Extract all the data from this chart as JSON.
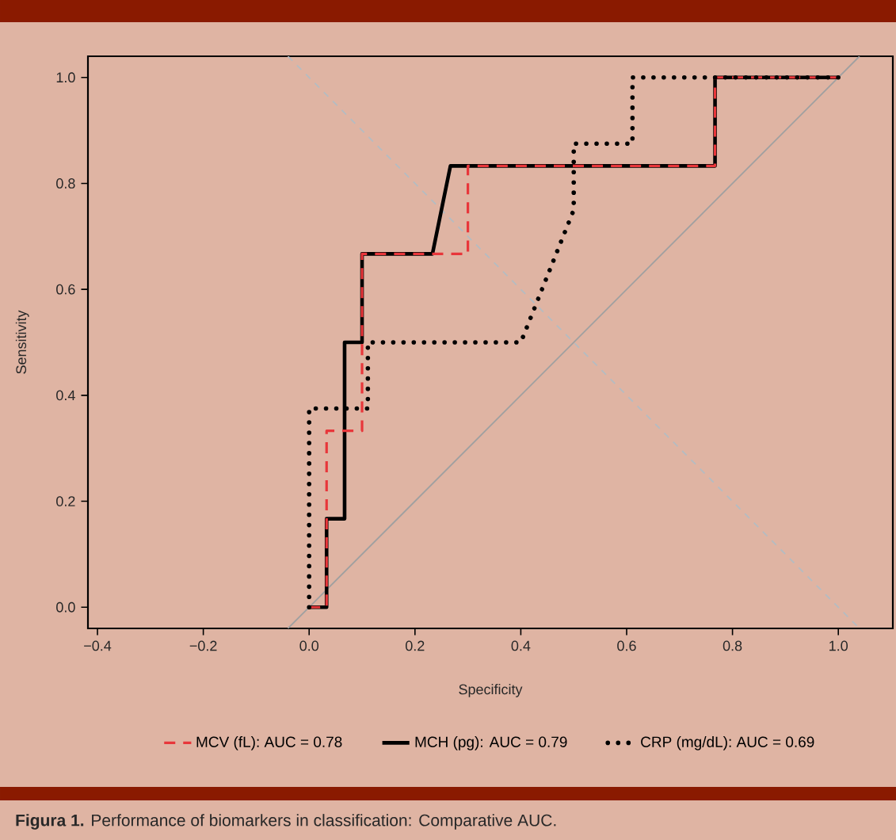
{
  "chart_data": {
    "type": "line",
    "xlabel": "Specificity",
    "ylabel": "Sensitivity",
    "xlim": [
      -0.418,
      1.103
    ],
    "ylim": [
      -0.04,
      1.04
    ],
    "xticks": [
      {
        "value": -0.4,
        "label": "−0.4"
      },
      {
        "value": -0.2,
        "label": "−0.2"
      },
      {
        "value": 0,
        "label": "0.0"
      },
      {
        "value": 0.2,
        "label": "0.2"
      },
      {
        "value": 0.4,
        "label": "0.4"
      },
      {
        "value": 0.6,
        "label": "0.6"
      },
      {
        "value": 0.8,
        "label": "0.8"
      },
      {
        "value": 1,
        "label": "1.0"
      }
    ],
    "yticks": [
      {
        "value": 0,
        "label": "0.0"
      },
      {
        "value": 0.2,
        "label": "0.2"
      },
      {
        "value": 0.4,
        "label": "0.4"
      },
      {
        "value": 0.6,
        "label": "0.6"
      },
      {
        "value": 0.8,
        "label": "0.8"
      },
      {
        "value": 1,
        "label": "1.0"
      }
    ],
    "legend": "bottom",
    "series": [
      {
        "color": "#a0a0a0",
        "line_style": "solid",
        "x": [
          -0.04,
          1.04
        ],
        "values": [
          -0.04,
          1.04
        ]
      },
      {
        "color": "#b4bcc2",
        "line_style": "dashed",
        "x": [
          -0.04,
          1.04
        ],
        "values": [
          1.04,
          -0.04
        ]
      },
      {
        "name": "MCV (fL): AUC = 0.78",
        "color": "#e8363a",
        "line_style": "dashed",
        "x": [
          0,
          0.033,
          0.033,
          0.1,
          0.1,
          0.3,
          0.3,
          0.767,
          0.767,
          1
        ],
        "values": [
          0,
          0,
          0.333,
          0.333,
          0.667,
          0.667,
          0.833,
          0.833,
          1,
          1
        ]
      },
      {
        "name": "MCH (pg): AUC = 0.79",
        "color": "#000000",
        "line_style": "solid",
        "x": [
          0,
          0.033,
          0.033,
          0.067,
          0.067,
          0.1,
          0.1,
          0.233,
          0.267,
          0.767,
          0.767,
          1
        ],
        "values": [
          0,
          0,
          0.167,
          0.167,
          0.5,
          0.5,
          0.667,
          0.667,
          0.833,
          0.833,
          1,
          1
        ]
      },
      {
        "name": "CRP (mg/dL): AUC = 0.69",
        "color": "#000000",
        "line_style": "dotted",
        "x": [
          0,
          0,
          0.111,
          0.111,
          0.4,
          0.5,
          0.5,
          0.611,
          0.611,
          1
        ],
        "values": [
          0,
          0.375,
          0.375,
          0.5,
          0.5,
          0.75,
          0.875,
          0.875,
          1,
          1
        ]
      }
    ],
    "annotations": [
      "**Figura 1.** Performance of biomarkers in classification: Comparative AUC."
    ]
  }
}
